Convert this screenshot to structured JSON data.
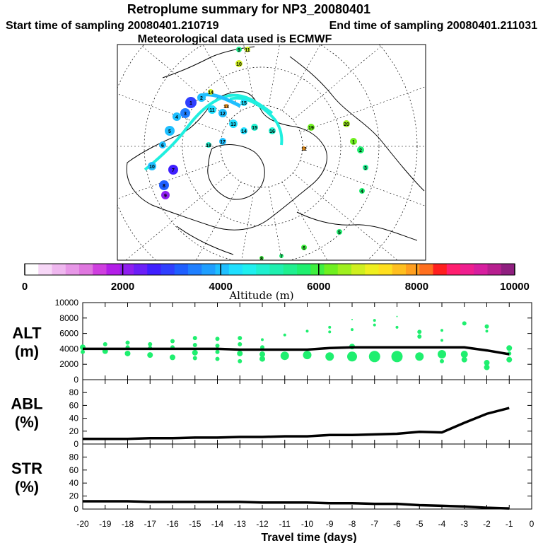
{
  "header": {
    "title": "Retroplume summary for NP3_20080401",
    "start_label": "Start time of sampling 20080401.210719",
    "end_label": "End time of sampling 20080401.211031",
    "met_label": "Meteorological data used is ECMWF"
  },
  "colorbar": {
    "xlabel": "Altitude (m)",
    "ticks": [
      "0",
      "2000",
      "4000",
      "6000",
      "8000",
      "10000"
    ],
    "colors": [
      "#ffffff",
      "#f7d7f7",
      "#efb7ef",
      "#e797e7",
      "#df77df",
      "#cf3fdf",
      "#b31fe7",
      "#8f1fef",
      "#6b1ff7",
      "#3f1fff",
      "#2f3fff",
      "#1f5fff",
      "#1f7fff",
      "#1f9fff",
      "#1fbfff",
      "#1fdfff",
      "#1fefef",
      "#1fefcf",
      "#1fefaf",
      "#1fef8f",
      "#1fef6f",
      "#3fef3f",
      "#6fef1f",
      "#9fef1f",
      "#cfef1f",
      "#efef1f",
      "#ffdf1f",
      "#ffbf1f",
      "#ff9f1f",
      "#ff6f1f",
      "#ff1f1f",
      "#ff1f6f",
      "#ef1f8f",
      "#d71f9f",
      "#b71f8f",
      "#8f1f7f"
    ]
  },
  "map": {
    "markers": [
      "1",
      "2",
      "3",
      "4",
      "5",
      "6",
      "7",
      "8",
      "9",
      "10",
      "11",
      "12",
      "13",
      "14",
      "15",
      "16",
      "17",
      "18",
      "19",
      "20"
    ]
  },
  "chart_data": [
    {
      "type": "scatter",
      "name": "ALT",
      "ylabel": "ALT\n(m)",
      "ylim": [
        0,
        10000
      ],
      "yticks": [
        "0",
        "2000",
        "4000",
        "6000",
        "8000",
        "10000"
      ],
      "xlim": [
        -20,
        0
      ],
      "line": {
        "x": [
          -20,
          -19,
          -18,
          -17,
          -16,
          -15,
          -14,
          -13,
          -12,
          -11,
          -10,
          -9,
          -8,
          -7,
          -6,
          -5,
          -4,
          -3,
          -2,
          -1
        ],
        "y": [
          4000,
          4000,
          4000,
          4000,
          4000,
          4000,
          4000,
          3900,
          3900,
          3900,
          3900,
          4100,
          4200,
          4200,
          4200,
          4200,
          4200,
          4200,
          3800,
          3300
        ]
      },
      "points": [
        {
          "x": -20,
          "y": 4200,
          "s": 4
        },
        {
          "x": -20,
          "y": 3600,
          "s": 3
        },
        {
          "x": -19,
          "y": 4600,
          "s": 3
        },
        {
          "x": -19,
          "y": 3700,
          "s": 4
        },
        {
          "x": -18,
          "y": 4800,
          "s": 3
        },
        {
          "x": -18,
          "y": 4200,
          "s": 3
        },
        {
          "x": -18,
          "y": 3400,
          "s": 4
        },
        {
          "x": -17,
          "y": 4600,
          "s": 3
        },
        {
          "x": -17,
          "y": 4100,
          "s": 3
        },
        {
          "x": -17,
          "y": 3200,
          "s": 4
        },
        {
          "x": -16,
          "y": 5000,
          "s": 3
        },
        {
          "x": -16,
          "y": 4200,
          "s": 3
        },
        {
          "x": -16,
          "y": 2900,
          "s": 4
        },
        {
          "x": -15,
          "y": 5400,
          "s": 3
        },
        {
          "x": -15,
          "y": 4500,
          "s": 3
        },
        {
          "x": -15,
          "y": 3500,
          "s": 4
        },
        {
          "x": -15,
          "y": 2800,
          "s": 3
        },
        {
          "x": -14,
          "y": 5300,
          "s": 3
        },
        {
          "x": -14,
          "y": 4400,
          "s": 3
        },
        {
          "x": -14,
          "y": 3600,
          "s": 3
        },
        {
          "x": -14,
          "y": 2700,
          "s": 3
        },
        {
          "x": -13,
          "y": 5400,
          "s": 3
        },
        {
          "x": -13,
          "y": 4600,
          "s": 3
        },
        {
          "x": -13,
          "y": 3400,
          "s": 4
        },
        {
          "x": -13,
          "y": 2400,
          "s": 3
        },
        {
          "x": -12,
          "y": 5200,
          "s": 2
        },
        {
          "x": -12,
          "y": 4200,
          "s": 3
        },
        {
          "x": -12,
          "y": 3300,
          "s": 4
        },
        {
          "x": -12,
          "y": 2700,
          "s": 4
        },
        {
          "x": -11,
          "y": 5800,
          "s": 2
        },
        {
          "x": -11,
          "y": 3100,
          "s": 6
        },
        {
          "x": -10,
          "y": 6300,
          "s": 2
        },
        {
          "x": -10,
          "y": 3200,
          "s": 6
        },
        {
          "x": -9,
          "y": 6800,
          "s": 2
        },
        {
          "x": -9,
          "y": 6200,
          "s": 2
        },
        {
          "x": -9,
          "y": 3000,
          "s": 6
        },
        {
          "x": -8,
          "y": 7800,
          "s": 1
        },
        {
          "x": -8,
          "y": 6500,
          "s": 2
        },
        {
          "x": -8,
          "y": 4300,
          "s": 4
        },
        {
          "x": -8,
          "y": 3000,
          "s": 7
        },
        {
          "x": -7,
          "y": 7700,
          "s": 2
        },
        {
          "x": -7,
          "y": 7100,
          "s": 2
        },
        {
          "x": -7,
          "y": 3000,
          "s": 8
        },
        {
          "x": -6,
          "y": 8200,
          "s": 1
        },
        {
          "x": -6,
          "y": 6800,
          "s": 2
        },
        {
          "x": -6,
          "y": 3000,
          "s": 8
        },
        {
          "x": -5,
          "y": 6200,
          "s": 3
        },
        {
          "x": -5,
          "y": 5600,
          "s": 3
        },
        {
          "x": -5,
          "y": 3000,
          "s": 6
        },
        {
          "x": -4,
          "y": 6400,
          "s": 2
        },
        {
          "x": -4,
          "y": 5100,
          "s": 2
        },
        {
          "x": -4,
          "y": 3300,
          "s": 6
        },
        {
          "x": -4,
          "y": 2400,
          "s": 3
        },
        {
          "x": -3,
          "y": 7300,
          "s": 3
        },
        {
          "x": -3,
          "y": 3300,
          "s": 5
        },
        {
          "x": -3,
          "y": 2600,
          "s": 4
        },
        {
          "x": -2,
          "y": 6900,
          "s": 3
        },
        {
          "x": -2,
          "y": 6300,
          "s": 2
        },
        {
          "x": -2,
          "y": 2200,
          "s": 4
        },
        {
          "x": -2,
          "y": 1600,
          "s": 4
        },
        {
          "x": -1,
          "y": 4100,
          "s": 4
        },
        {
          "x": -1,
          "y": 3400,
          "s": 3
        },
        {
          "x": -1,
          "y": 2600,
          "s": 4
        }
      ]
    },
    {
      "type": "line",
      "name": "ABL",
      "ylabel": "ABL\n(%)",
      "ylim": [
        0,
        100
      ],
      "yticks": [
        "0",
        "20",
        "40",
        "60",
        "80"
      ],
      "x": [
        -20,
        -19,
        -18,
        -17,
        -16,
        -15,
        -14,
        -13,
        -12,
        -11,
        -10,
        -9,
        -8,
        -7,
        -6,
        -5,
        -4,
        -3,
        -2,
        -1
      ],
      "y": [
        8,
        8,
        8,
        9,
        9,
        10,
        10,
        11,
        11,
        12,
        12,
        14,
        14,
        15,
        16,
        19,
        18,
        33,
        47,
        56
      ]
    },
    {
      "type": "line",
      "name": "STR",
      "ylabel": "STR\n(%)",
      "ylim": [
        0,
        100
      ],
      "yticks": [
        "0",
        "20",
        "40",
        "60",
        "80"
      ],
      "x": [
        -20,
        -19,
        -18,
        -17,
        -16,
        -15,
        -14,
        -13,
        -12,
        -11,
        -10,
        -9,
        -8,
        -7,
        -6,
        -5,
        -4,
        -3,
        -2,
        -1
      ],
      "y": [
        12,
        12,
        12,
        11,
        11,
        11,
        11,
        11,
        10,
        10,
        10,
        9,
        9,
        8,
        8,
        6,
        5,
        4,
        2,
        1
      ],
      "xlabel": "Travel time (days)",
      "xticks": [
        "-20",
        "-19",
        "-18",
        "-17",
        "-16",
        "-15",
        "-14",
        "-13",
        "-12",
        "-11",
        "-10",
        "-9",
        "-8",
        "-7",
        "-6",
        "-5",
        "-4",
        "-3",
        "-2",
        "-1",
        "0"
      ]
    }
  ]
}
